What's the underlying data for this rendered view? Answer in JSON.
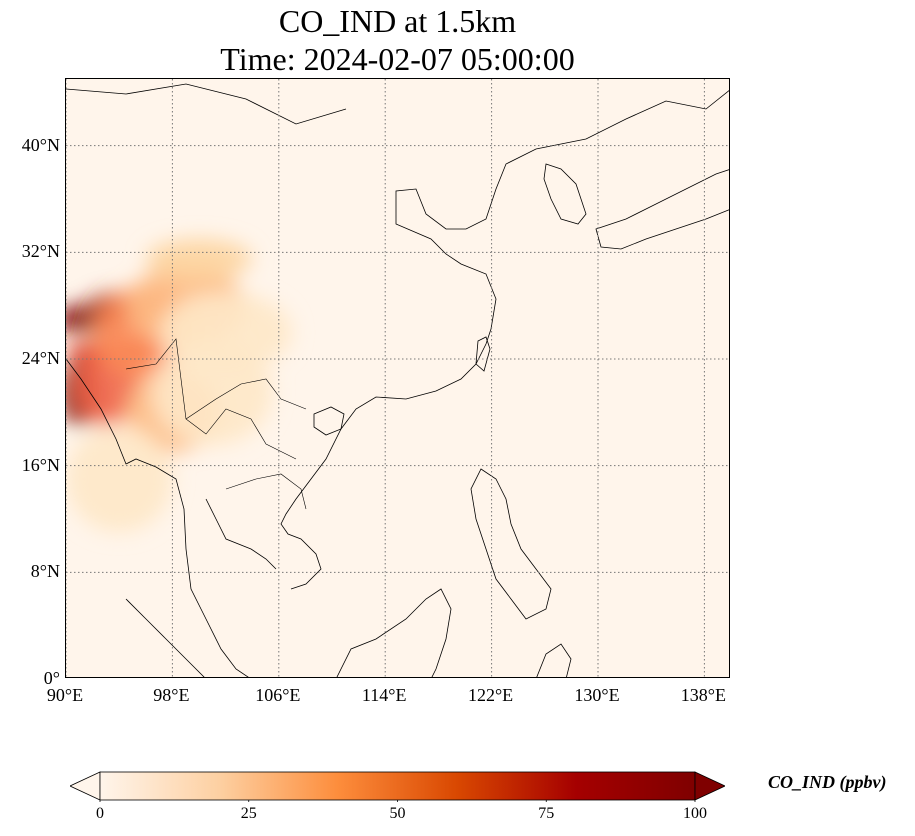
{
  "title": {
    "line1": "CO_IND at 1.5km",
    "line2": "Time: 2024-02-07 05:00:00"
  },
  "map": {
    "projection": "PlateCarree",
    "lon_range": [
      90,
      140
    ],
    "lat_range": [
      0,
      45
    ],
    "gridlines": true,
    "gridline_style": "dotted",
    "background_color": "#fff5eb",
    "coastline_color": "#000000"
  },
  "y_ticks": [
    {
      "value": 0,
      "label": "0°"
    },
    {
      "value": 8,
      "label": "8°N"
    },
    {
      "value": 16,
      "label": "16°N"
    },
    {
      "value": 24,
      "label": "24°N"
    },
    {
      "value": 32,
      "label": "32°N"
    },
    {
      "value": 40,
      "label": "40°N"
    }
  ],
  "x_ticks": [
    {
      "value": 90,
      "label": "90°E"
    },
    {
      "value": 98,
      "label": "98°E"
    },
    {
      "value": 106,
      "label": "106°E"
    },
    {
      "value": 114,
      "label": "114°E"
    },
    {
      "value": 122,
      "label": "122°E"
    },
    {
      "value": 130,
      "label": "130°E"
    },
    {
      "value": 138,
      "label": "138°E"
    }
  ],
  "colorbar": {
    "title": "CO_IND (ppbv)",
    "colormap": "OrRd",
    "min": 0,
    "max": 100,
    "extend": "both",
    "colors": [
      "#fff5eb",
      "#fdd0a2",
      "#fd8d3c",
      "#d94801",
      "#a50000",
      "#7f0000"
    ],
    "ticks": [
      {
        "value": 0,
        "label": "0"
      },
      {
        "value": 25,
        "label": "25"
      },
      {
        "value": 50,
        "label": "50"
      },
      {
        "value": 75,
        "label": "75"
      },
      {
        "value": 100,
        "label": "100"
      }
    ]
  },
  "plumes": [
    {
      "lon": 91.5,
      "lat": 27.0,
      "rx": 2.5,
      "ry": 1.0,
      "color": "#7f0000"
    },
    {
      "lon": 94.0,
      "lat": 27.8,
      "rx": 2.5,
      "ry": 1.2,
      "color": "#990000"
    },
    {
      "lon": 91.0,
      "lat": 21.5,
      "rx": 1.5,
      "ry": 2.5,
      "color": "#7f0000"
    },
    {
      "lon": 93.5,
      "lat": 24.5,
      "rx": 3.5,
      "ry": 1.0,
      "color": "#d7301f"
    },
    {
      "lon": 93.0,
      "lat": 22.0,
      "rx": 2.5,
      "ry": 3.0,
      "color": "#ef6548"
    },
    {
      "lon": 96.0,
      "lat": 26.0,
      "rx": 4.0,
      "ry": 3.5,
      "color": "#fc8d59"
    },
    {
      "lon": 99.0,
      "lat": 28.0,
      "rx": 4.5,
      "ry": 3.0,
      "color": "#fdbb84"
    },
    {
      "lon": 100.0,
      "lat": 31.5,
      "rx": 4.0,
      "ry": 1.5,
      "color": "#fdd49e"
    },
    {
      "lon": 98.0,
      "lat": 20.0,
      "rx": 3.5,
      "ry": 3.0,
      "color": "#fdbb84"
    },
    {
      "lon": 101.0,
      "lat": 21.5,
      "rx": 4.5,
      "ry": 4.0,
      "color": "#fee8c8"
    },
    {
      "lon": 94.0,
      "lat": 15.0,
      "rx": 4.0,
      "ry": 4.0,
      "color": "#fee8c8"
    },
    {
      "lon": 102.0,
      "lat": 26.0,
      "rx": 5.0,
      "ry": 3.0,
      "color": "#fee8c8"
    }
  ]
}
